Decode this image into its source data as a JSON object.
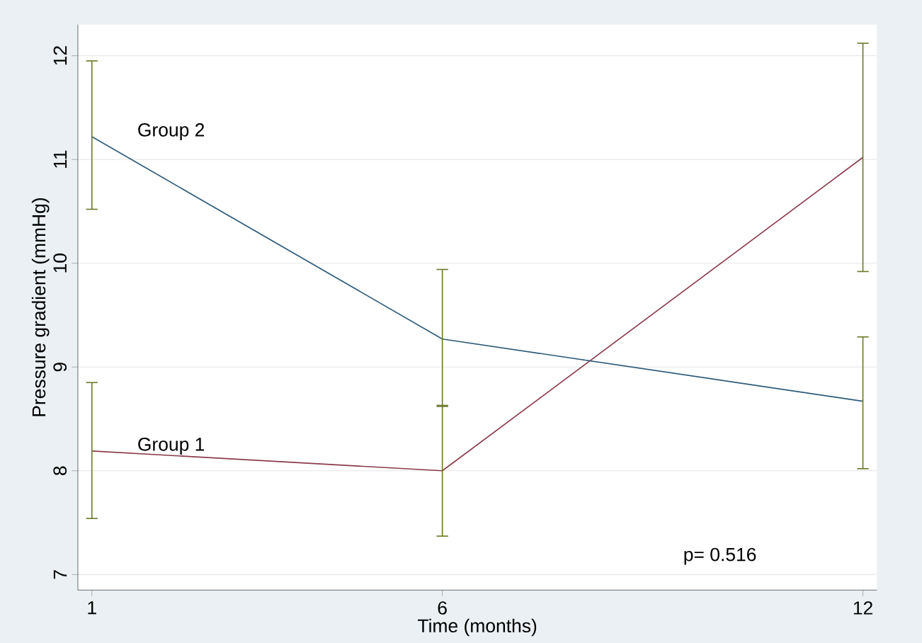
{
  "chart_data": {
    "type": "line",
    "xlabel": "Time (months)",
    "ylabel": "Pressure gradient (mmHg)",
    "x": [
      1,
      6,
      12
    ],
    "series": [
      {
        "name": "Group 1",
        "color": "#8b3a4a",
        "values": [
          8.19,
          8.0,
          11.02
        ],
        "errors": [
          [
            7.54,
            8.85
          ],
          [
            7.37,
            8.63
          ],
          [
            9.92,
            12.12
          ]
        ]
      },
      {
        "name": "Group 2",
        "color": "#2e5a7a",
        "values": [
          11.22,
          9.27,
          8.67
        ],
        "errors": [
          [
            10.52,
            11.95
          ],
          [
            8.62,
            9.94
          ],
          [
            8.02,
            9.29
          ]
        ]
      }
    ],
    "xlim": [
      0.8,
      12.2
    ],
    "ylim": [
      6.85,
      12.3
    ],
    "xticks": [
      1,
      6,
      12
    ],
    "yticks": [
      7,
      8,
      9,
      10,
      11,
      12
    ],
    "grid": "y",
    "marker": "none",
    "line_style": "solid",
    "annotations": [
      "p= 0.516"
    ]
  }
}
